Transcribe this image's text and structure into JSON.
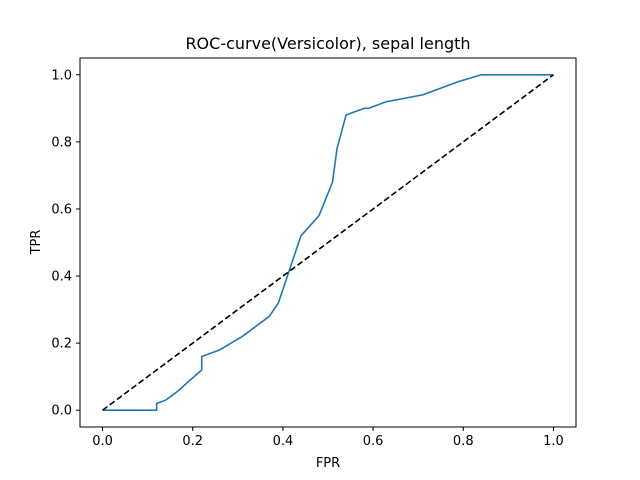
{
  "chart_data": {
    "type": "line",
    "title": "ROC-curve(Versicolor), sepal length",
    "xlabel": "FPR",
    "ylabel": "TPR",
    "xlim": [
      -0.05,
      1.05
    ],
    "ylim": [
      -0.05,
      1.05
    ],
    "xticks": [
      0.0,
      0.2,
      0.4,
      0.6,
      0.8,
      1.0
    ],
    "yticks": [
      0.0,
      0.2,
      0.4,
      0.6,
      0.8,
      1.0
    ],
    "xtick_labels": [
      "0.0",
      "0.2",
      "0.4",
      "0.6",
      "0.8",
      "1.0"
    ],
    "ytick_labels": [
      "0.0",
      "0.2",
      "0.4",
      "0.6",
      "0.8",
      "1.0"
    ],
    "grid": false,
    "series": [
      {
        "style": "solid",
        "color": "#1f77b4",
        "x": [
          0.0,
          0.12,
          0.12,
          0.14,
          0.15,
          0.17,
          0.19,
          0.22,
          0.22,
          0.26,
          0.31,
          0.37,
          0.38,
          0.39,
          0.42,
          0.44,
          0.48,
          0.51,
          0.52,
          0.54,
          0.58,
          0.59,
          0.6,
          0.63,
          0.71,
          0.79,
          0.84,
          1.0
        ],
        "y": [
          0.0,
          0.0,
          0.02,
          0.03,
          0.04,
          0.06,
          0.085,
          0.12,
          0.16,
          0.18,
          0.22,
          0.28,
          0.3,
          0.32,
          0.44,
          0.52,
          0.58,
          0.68,
          0.78,
          0.88,
          0.9,
          0.9,
          0.905,
          0.92,
          0.94,
          0.98,
          1.0,
          1.0
        ]
      },
      {
        "style": "dashed",
        "color": "#000000",
        "x": [
          0.0,
          1.0
        ],
        "y": [
          0.0,
          1.0
        ]
      }
    ]
  }
}
